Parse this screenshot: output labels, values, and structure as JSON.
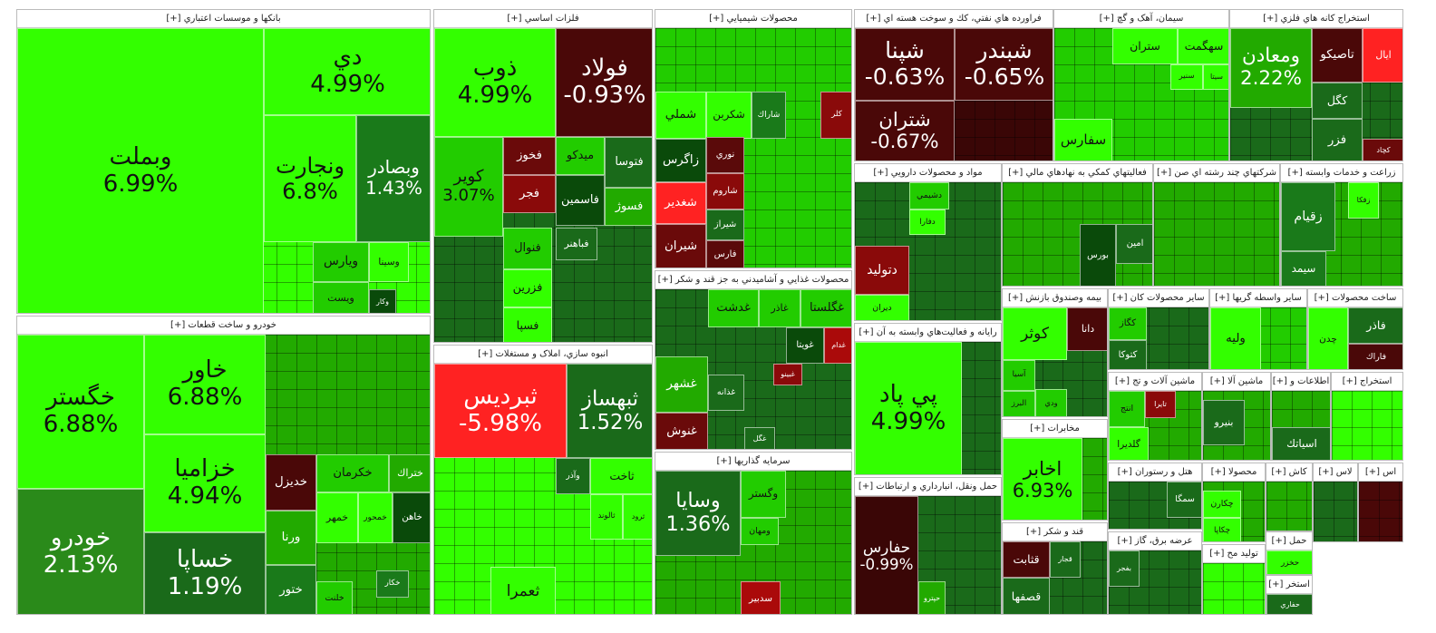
{
  "sectors": [
    {
      "title": "بانکها و موسسات اعتباري [+]",
      "fill": "#33ff00",
      "tiles": [
        {
          "label": "وبملت",
          "change": "6.99%",
          "color": "#33ff00"
        },
        {
          "label": "دي",
          "change": "4.99%",
          "color": "#33ff00"
        },
        {
          "label": "ونجارت",
          "change": "6.8%",
          "color": "#33ff00"
        },
        {
          "label": "وبصادر",
          "change": "1.43%",
          "color": "#1a7a1a"
        },
        {
          "label": "ويارس",
          "color": "#22cc00"
        },
        {
          "label": "وسينا",
          "color": "#33ff00"
        },
        {
          "label": "ويست",
          "color": "#22cc00"
        },
        {
          "label": "وکار",
          "color": "#0a4a0a"
        }
      ]
    },
    {
      "title": "خودرو و ساخت قطعات [+]",
      "fill": "#22aa00",
      "tiles": [
        {
          "label": "خگستر",
          "change": "6.88%",
          "color": "#33ff00"
        },
        {
          "label": "خودرو",
          "change": "2.13%",
          "color": "#2a8a1a"
        },
        {
          "label": "خاور",
          "change": "6.88%",
          "color": "#33ff00"
        },
        {
          "label": "خزاميا",
          "change": "4.94%",
          "color": "#33ff00"
        },
        {
          "label": "خساپا",
          "change": "1.19%",
          "color": "#1a6a1a"
        },
        {
          "label": "خديزل",
          "color": "#4a0808"
        },
        {
          "label": "خکرمان",
          "color": "#22cc00"
        },
        {
          "label": "ختراك",
          "color": "#22aa00"
        },
        {
          "label": "خمهر",
          "color": "#33ff00"
        },
        {
          "label": "خمحور",
          "color": "#33ff00"
        },
        {
          "label": "خاهن",
          "color": "#0a4a0a"
        },
        {
          "label": "ورنا",
          "color": "#22aa00"
        },
        {
          "label": "ختور",
          "color": "#1a7a1a"
        },
        {
          "label": "خلنت",
          "color": "#22cc00"
        },
        {
          "label": "خکار",
          "color": "#1a7a1a"
        }
      ]
    },
    {
      "title": "فلزات اساسي [+]",
      "fill": "#1a6a1a",
      "tiles": [
        {
          "label": "ذوب",
          "change": "4.99%",
          "color": "#33ff00"
        },
        {
          "label": "فولاد",
          "change": "-0.93%",
          "color": "#4a0808"
        },
        {
          "label": "كوير",
          "change": "3.07%",
          "color": "#22cc00"
        },
        {
          "label": "فخوز",
          "color": "#6a0a0a"
        },
        {
          "label": "ميدكو",
          "color": "#22cc00"
        },
        {
          "label": "فتوسا",
          "color": "#1a6a1a"
        },
        {
          "label": "فجر",
          "color": "#8a0a0a"
        },
        {
          "label": "فاسمين",
          "color": "#0a4a0a"
        },
        {
          "label": "فسوژ",
          "color": "#22aa00"
        },
        {
          "label": "فنوال",
          "color": "#22cc00"
        },
        {
          "label": "فباهنر",
          "color": "#1a6a1a"
        },
        {
          "label": "فزرين",
          "color": "#33ff00"
        },
        {
          "label": "فسپا",
          "color": "#33ff00"
        }
      ]
    },
    {
      "title": "انبوه سازي، املاک و مستغلات [+]",
      "fill": "#33ff00",
      "tiles": [
        {
          "label": "ثبرديس",
          "change": "-5.98%",
          "color": "#ff2222"
        },
        {
          "label": "ثبهساز",
          "change": "1.52%",
          "color": "#1a6a1a"
        },
        {
          "label": "وآذر",
          "color": "#1a6a1a"
        },
        {
          "label": "ثاخت",
          "color": "#33ff00"
        },
        {
          "label": "ثالوند",
          "color": "#33ff00"
        },
        {
          "label": "ثرود",
          "color": "#33ff00"
        },
        {
          "label": "ثعمرا",
          "color": "#33ff00"
        }
      ]
    },
    {
      "title": "محصولات شيميايي [+]",
      "fill": "#22cc00",
      "tiles": [
        {
          "label": "شملي",
          "color": "#33ff00"
        },
        {
          "label": "شكربن",
          "color": "#33ff00"
        },
        {
          "label": "شاراك",
          "color": "#1a7a1a"
        },
        {
          "label": "كلر",
          "color": "#8a0a0a"
        },
        {
          "label": "زاگرس",
          "color": "#0a4a0a"
        },
        {
          "label": "نوري",
          "color": "#5a0a0a"
        },
        {
          "label": "شغدير",
          "color": "#ff2222"
        },
        {
          "label": "شاروم",
          "color": "#8a0a0a"
        },
        {
          "label": "شيراز",
          "color": "#1a6a1a"
        },
        {
          "label": "شيران",
          "color": "#6a0a0a"
        },
        {
          "label": "فارس",
          "color": "#5a0a0a"
        }
      ]
    },
    {
      "title": "محصولات غذايي و آشاميدني به جز قند و شکر [+]",
      "fill": "#1a6a1a",
      "tiles": [
        {
          "label": "غشهر",
          "color": "#22aa00"
        },
        {
          "label": "غنوش",
          "color": "#6a0a0a"
        },
        {
          "label": "غدشت",
          "color": "#22cc00"
        },
        {
          "label": "غاذر",
          "color": "#22cc00"
        },
        {
          "label": "غگلستا",
          "color": "#22cc00"
        },
        {
          "label": "غويتا",
          "color": "#0a4a0a"
        },
        {
          "label": "غدام",
          "color": "#aa0a0a"
        },
        {
          "label": "غذانه",
          "color": "#1a6a1a"
        },
        {
          "label": "غگل",
          "color": "#1a6a1a"
        },
        {
          "label": "غبينو",
          "color": "#8a0a0a"
        }
      ]
    },
    {
      "title": "سرمايه گذاريها [+]",
      "fill": "#22aa00",
      "tiles": [
        {
          "label": "وسايا",
          "change": "1.36%",
          "color": "#1a6a1a"
        },
        {
          "label": "وگستر",
          "color": "#22cc00"
        },
        {
          "label": "ومهان",
          "color": "#22cc00"
        },
        {
          "label": "سدبير",
          "color": "#aa0a0a"
        }
      ]
    },
    {
      "title": "فراورده هاي نفتي، كك و سوخت هسته اي [+]",
      "fill": "#3a0606",
      "tiles": [
        {
          "label": "شپنا",
          "change": "-0.63%",
          "color": "#4a0808"
        },
        {
          "label": "شبندر",
          "change": "-0.65%",
          "color": "#4a0808"
        },
        {
          "label": "شتران",
          "change": "-0.67%",
          "color": "#4a0808"
        }
      ]
    },
    {
      "title": "مواد و محصولات دارويي [+]",
      "fill": "#1a6a1a",
      "tiles": [
        {
          "label": "دتوليد",
          "color": "#8a0a0a"
        },
        {
          "label": "ديران",
          "color": "#33ff00"
        },
        {
          "label": "دشيمي",
          "color": "#22cc00"
        },
        {
          "label": "دفارا",
          "color": "#33ff00"
        }
      ]
    },
    {
      "title": "رايانه و فعاليت‌هاي وابسته به آن [+]",
      "fill": "#1a6a1a",
      "tiles": [
        {
          "label": "پي پاد",
          "change": "4.99%",
          "color": "#33ff00"
        }
      ]
    },
    {
      "title": "حمل ونقل، انبارداري و ارتباطات [+]",
      "fill": "#1a6a1a",
      "tiles": [
        {
          "label": "حفارس",
          "change": "-0.99%",
          "color": "#3a0606"
        },
        {
          "label": "حپترو",
          "color": "#22aa00"
        }
      ]
    },
    {
      "title": "سيمان، آهک و گچ [+]",
      "fill": "#22cc00",
      "tiles": [
        {
          "label": "ستران",
          "color": "#33ff00"
        },
        {
          "label": "سهگمت",
          "color": "#33ff00"
        },
        {
          "label": "سيتا",
          "color": "#33ff00"
        },
        {
          "label": "سنير",
          "color": "#33ff00"
        },
        {
          "label": "سفارس",
          "color": "#33ff00"
        }
      ]
    },
    {
      "title": "استخراج کانه هاي فلزي [+]",
      "fill": "#1a6a1a",
      "tiles": [
        {
          "label": "ومعادن",
          "change": "2.22%",
          "color": "#22aa00"
        },
        {
          "label": "تاصيكو",
          "color": "#4a0808"
        },
        {
          "label": "ايال",
          "color": "#ff2222"
        },
        {
          "label": "كگل",
          "color": "#1a6a1a"
        },
        {
          "label": "فزر",
          "color": "#1a6a1a"
        },
        {
          "label": "کچاد",
          "color": "#6a0a0a"
        }
      ]
    },
    {
      "title": "فعاليتهاي کمکي به نهادهاي مالي [+]",
      "fill": "#22aa00",
      "tiles": [
        {
          "label": "بورس",
          "color": "#0a4a0a"
        },
        {
          "label": "امين",
          "color": "#1a6a1a"
        }
      ]
    },
    {
      "title": "شرکتهاي چند رشته اي صن [+]",
      "fill": "#22aa00",
      "tiles": []
    },
    {
      "title": "زراعت و خدمات وابسته [+]",
      "fill": "#22aa00",
      "tiles": [
        {
          "label": "زقيام",
          "color": "#1a7a1a"
        },
        {
          "label": "زفكا",
          "color": "#33ff00"
        },
        {
          "label": "سيمد",
          "color": "#1a7a1a"
        }
      ]
    },
    {
      "title": "بيمه وصندوق بازنش [+]",
      "fill": "#1a6a1a",
      "tiles": [
        {
          "label": "دانا",
          "color": "#4a0808"
        },
        {
          "label": "كوثر",
          "color": "#33ff00"
        },
        {
          "label": "آسيا",
          "color": "#22cc00"
        },
        {
          "label": "البرز",
          "color": "#22cc00"
        },
        {
          "label": "ودي",
          "color": "#22cc00"
        }
      ]
    },
    {
      "title": "مخابرات [+]",
      "fill": "#22aa00",
      "tiles": [
        {
          "label": "اخابر",
          "change": "6.93%",
          "color": "#33ff00"
        }
      ]
    },
    {
      "title": "قند و شکر [+]",
      "fill": "#1a6a1a",
      "tiles": [
        {
          "label": "قثابت",
          "color": "#4a0808"
        },
        {
          "label": "قجار",
          "color": "#1a6a1a"
        },
        {
          "label": "قصفها",
          "color": "#1a6a1a"
        }
      ]
    },
    {
      "title": "ساير محصولات کان [+]",
      "fill": "#1a6a1a",
      "tiles": [
        {
          "label": "كگاز",
          "color": "#22cc00"
        },
        {
          "label": "كتوكا",
          "color": "#1a6a1a"
        }
      ]
    },
    {
      "title": "ساير واسطه گريها [+]",
      "fill": "#22cc00",
      "tiles": [
        {
          "label": "وليه",
          "color": "#33ff00"
        }
      ]
    },
    {
      "title": "ساخت محصولات [+]",
      "fill": "#22aa00",
      "tiles": [
        {
          "label": "فاذر",
          "color": "#1a6a1a"
        },
        {
          "label": "فاراك",
          "color": "#4a0808"
        },
        {
          "label": "چدن",
          "color": "#33ff00"
        }
      ]
    },
    {
      "title": "ماشين آلات و تج [+]",
      "fill": "#22aa00",
      "tiles": [
        {
          "label": "انتج",
          "color": "#22cc00"
        },
        {
          "label": "گلديرا",
          "color": "#33ff00"
        },
        {
          "label": "تايرا",
          "color": "#8a0a0a"
        }
      ]
    },
    {
      "title": "ماشين آلا [+]",
      "fill": "#22aa00",
      "tiles": [
        {
          "label": "بنيرو",
          "color": "#1a6a1a"
        }
      ]
    },
    {
      "title": "اطلاعات و [+]",
      "fill": "#22aa00",
      "tiles": [
        {
          "label": "اسياتك",
          "color": "#1a6a1a"
        }
      ]
    },
    {
      "title": "استخراج [+]",
      "fill": "#33ff00",
      "tiles": []
    },
    {
      "title": "هتل و رستوران [+]",
      "fill": "#1a6a1a",
      "tiles": [
        {
          "label": "سمگا",
          "color": "#1a6a1a"
        }
      ]
    },
    {
      "title": "عرضه برق، گاز [+]",
      "fill": "#1a6a1a",
      "tiles": [
        {
          "label": "بفجر",
          "color": "#1a6a1a"
        }
      ]
    },
    {
      "title": "محصولا [+]",
      "fill": "#22aa00",
      "tiles": [
        {
          "label": "چكارن",
          "color": "#33ff00"
        },
        {
          "label": "چكاپا",
          "color": "#33ff00"
        }
      ]
    },
    {
      "title": "توليد مح [+]",
      "fill": "#33ff00",
      "tiles": []
    },
    {
      "title": "كاش [+]",
      "fill": "#22aa00",
      "tiles": []
    },
    {
      "title": "حمل [+]",
      "fill": "#33ff00",
      "tiles": [
        {
          "label": "حخزر",
          "color": "#33ff00"
        }
      ]
    },
    {
      "title": "استخر [+]",
      "fill": "#1a6a1a",
      "tiles": [
        {
          "label": "حفاري",
          "color": "#1a6a1a"
        }
      ]
    },
    {
      "title": "لاس [+]",
      "fill": "#1a6a1a",
      "tiles": []
    },
    {
      "title": "اس [+]",
      "fill": "#4a0808",
      "tiles": []
    }
  ]
}
